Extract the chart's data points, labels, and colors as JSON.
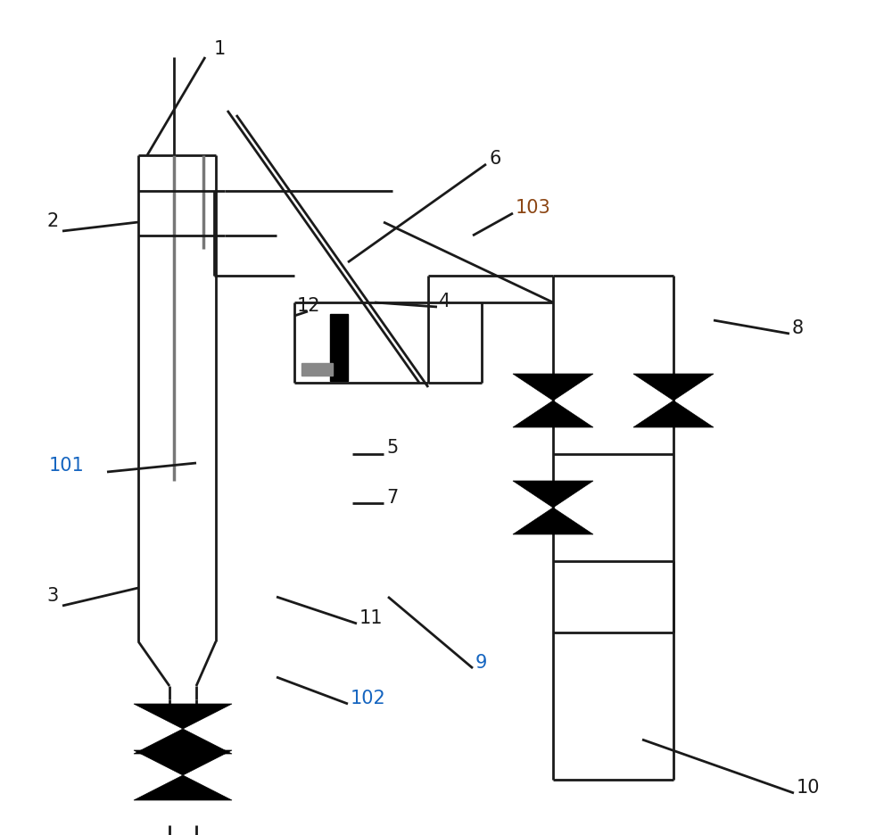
{
  "background": "#ffffff",
  "line_color": "#1a1a1a",
  "line_width": 2.0,
  "label_colors": {
    "1": "#1a1a1a",
    "2": "#1a1a1a",
    "3": "#1a1a1a",
    "4": "#1a1a1a",
    "5": "#1a1a1a",
    "6": "#1a1a1a",
    "7": "#1a1a1a",
    "8": "#1a1a1a",
    "9": "#1565C0",
    "10": "#1a1a1a",
    "11": "#1a1a1a",
    "12": "#1a1a1a",
    "101": "#1565C0",
    "102": "#1565C0",
    "103": "#8B4513"
  }
}
